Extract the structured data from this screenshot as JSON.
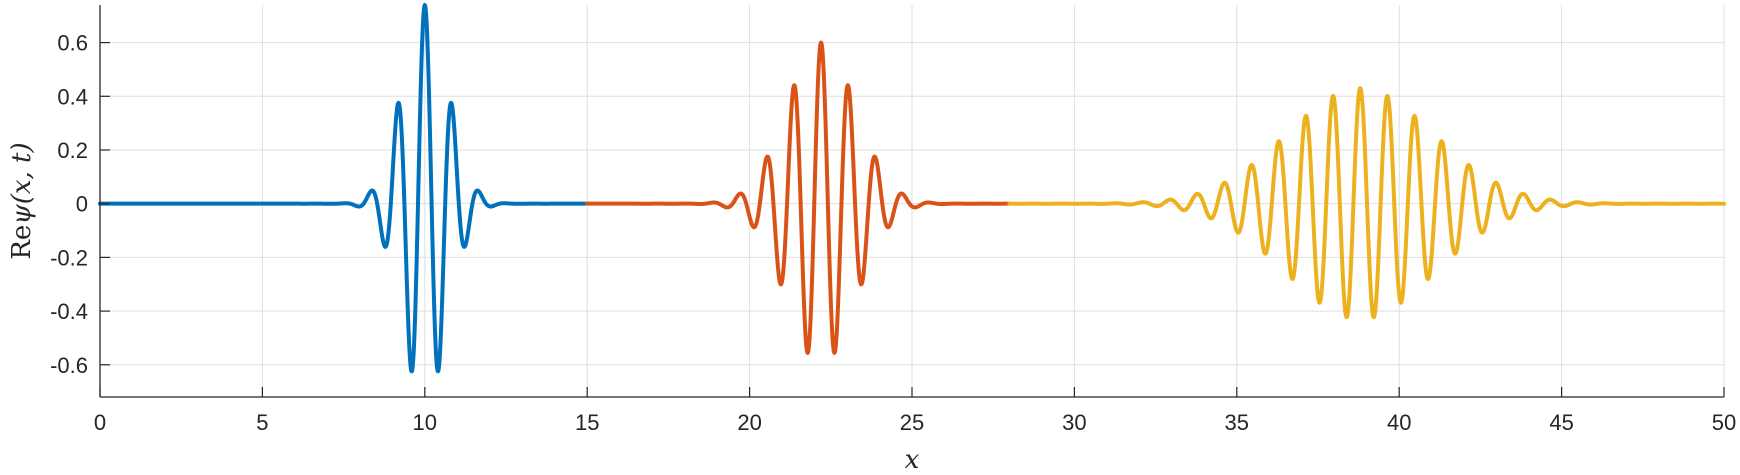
{
  "chart_data": {
    "type": "line",
    "title": "",
    "xlabel": "x",
    "ylabel_prefix": "Re",
    "ylabel_expr": "ψ(x, t)",
    "xlim": [
      0,
      50
    ],
    "ylim": [
      -0.72,
      0.74
    ],
    "x_ticks": [
      0,
      5,
      10,
      15,
      20,
      25,
      30,
      35,
      40,
      45,
      50
    ],
    "x_tick_labels": [
      "0",
      "5",
      "10",
      "15",
      "20",
      "25",
      "30",
      "35",
      "40",
      "45",
      "50"
    ],
    "y_ticks": [
      -0.6,
      -0.4,
      -0.2,
      0,
      0.2,
      0.4,
      0.6
    ],
    "y_tick_labels": [
      "-0.6",
      "-0.4",
      "-0.2",
      "0",
      "0.2",
      "0.4",
      "0.6"
    ],
    "grid": true,
    "legend": "none",
    "series": [
      {
        "color": "#0072BD",
        "x_range": [
          0,
          15
        ],
        "center": 10.0,
        "amplitude": 0.74,
        "width": 1.0,
        "wavenumber": 7.5
      },
      {
        "color": "#D95319",
        "x_range": [
          15,
          28
        ],
        "center": 22.2,
        "amplitude": 0.6,
        "width": 1.5,
        "wavenumber": 7.5
      },
      {
        "color": "#EDB120",
        "x_range": [
          28,
          50
        ],
        "center": 38.8,
        "amplitude": 0.43,
        "width": 3.2,
        "wavenumber": 7.5
      }
    ]
  }
}
